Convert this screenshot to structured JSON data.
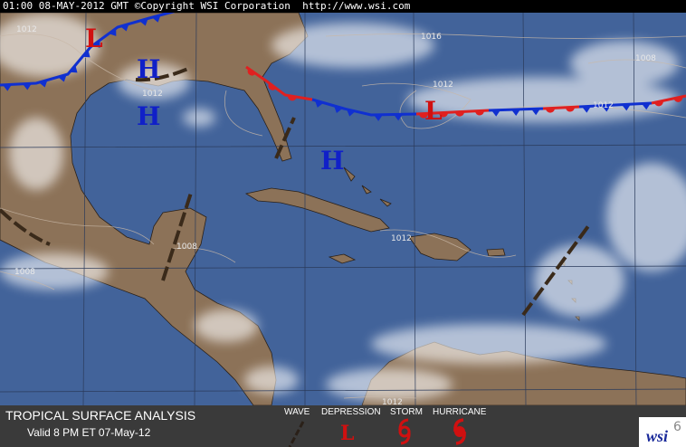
{
  "header": {
    "text": "01:00 08-MAY-2012 GMT ©Copyright WSI Corporation  http://www.wsi.com"
  },
  "isobar_labels": [
    "1012",
    "1016",
    "1008",
    "1012",
    "1012",
    "1012",
    "1008",
    "1012",
    "1008",
    "1012"
  ],
  "pressure_centers": [
    "L",
    "H",
    "H",
    "H",
    "L"
  ],
  "footer": {
    "title": "TROPICAL SURFACE ANALYSIS",
    "valid": "Valid 8 PM ET 07-May-12"
  },
  "legend": {
    "wave": "WAVE",
    "depression": "DEPRESSION",
    "storm": "STORM",
    "hurricane": "HURRICANE",
    "depression_symbol": "L"
  },
  "logo": "wsi"
}
